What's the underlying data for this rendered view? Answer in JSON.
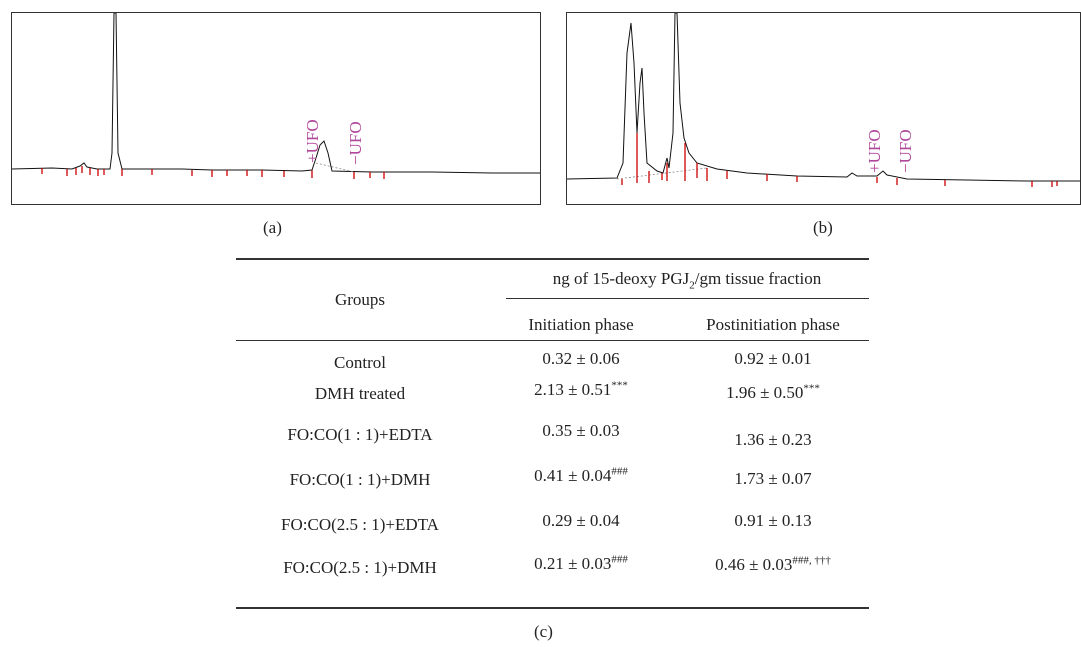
{
  "panels": {
    "a": {
      "label": "(a)",
      "ufo_plus": "+UFO",
      "ufo_minus": "−UFO"
    },
    "b": {
      "label": "(b)",
      "ufo_plus": "+UFO",
      "ufo_minus": "−UFO"
    },
    "c": {
      "label": "(c)"
    }
  },
  "table": {
    "header_groups": "Groups",
    "header_main_prefix": "ng of 15-deoxy PGJ",
    "header_main_sub": "2",
    "header_main_suffix": "/gm tissue fraction",
    "header_col1": "Initiation phase",
    "header_col2": "Postinitiation phase",
    "rows": [
      {
        "group": "Control",
        "init": "0.32 ± 0.06",
        "init_sup": "",
        "post": "0.92 ± 0.01",
        "post_sup": ""
      },
      {
        "group": "DMH treated",
        "init": "2.13 ± 0.51",
        "init_sup": "***",
        "post": "1.96 ± 0.50",
        "post_sup": "***"
      },
      {
        "group": "FO:CO(1 : 1)+EDTA",
        "init": "0.35 ± 0.03",
        "init_sup": "",
        "post": "1.36 ± 0.23",
        "post_sup": ""
      },
      {
        "group": "FO:CO(1 : 1)+DMH",
        "init": "0.41 ± 0.04",
        "init_sup": "###",
        "post": "1.73 ± 0.07",
        "post_sup": ""
      },
      {
        "group": "FO:CO(2.5 : 1)+EDTA",
        "init": "0.29 ± 0.04",
        "init_sup": "",
        "post": "0.91 ± 0.13",
        "post_sup": ""
      },
      {
        "group": "FO:CO(2.5 : 1)+DMH",
        "init": "0.21 ± 0.03",
        "init_sup": "###",
        "post": "0.46 ± 0.03",
        "post_sup": "###, †††"
      }
    ]
  },
  "colors": {
    "trace": "#111111",
    "marker": "#cc0000",
    "ufo_label": "#b0479b"
  }
}
